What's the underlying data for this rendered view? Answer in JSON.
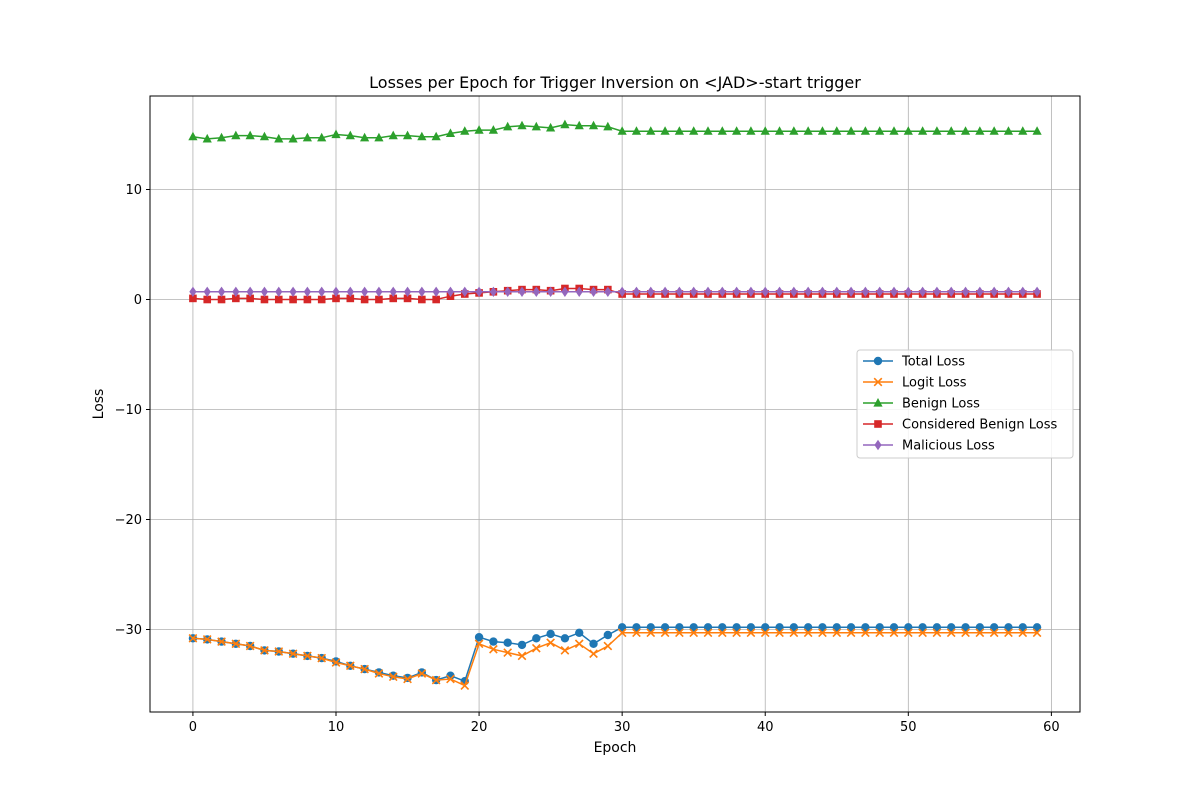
{
  "chart_data": {
    "type": "line",
    "title": "Losses per Epoch for Trigger Inversion on <JAD>-start trigger",
    "xlabel": "Epoch",
    "ylabel": "Loss",
    "xlim": [
      -3,
      62
    ],
    "ylim": [
      -37.5,
      18.5
    ],
    "xticks": [
      0,
      10,
      20,
      30,
      40,
      50,
      60
    ],
    "yticks": [
      -30,
      -20,
      -10,
      0,
      10
    ],
    "xtick_labels": [
      "0",
      "10",
      "20",
      "30",
      "40",
      "50",
      "60"
    ],
    "ytick_labels": [
      "−30",
      "−20",
      "−10",
      "0",
      "10"
    ],
    "grid": true,
    "legend_position": "center-right",
    "x": [
      0,
      1,
      2,
      3,
      4,
      5,
      6,
      7,
      8,
      9,
      10,
      11,
      12,
      13,
      14,
      15,
      16,
      17,
      18,
      19,
      20,
      21,
      22,
      23,
      24,
      25,
      26,
      27,
      28,
      29,
      30,
      31,
      32,
      33,
      34,
      35,
      36,
      37,
      38,
      39,
      40,
      41,
      42,
      43,
      44,
      45,
      46,
      47,
      48,
      49,
      50,
      51,
      52,
      53,
      54,
      55,
      56,
      57,
      58,
      59
    ],
    "series": [
      {
        "name": "Total Loss",
        "color": "#1f77b4",
        "marker": "circle",
        "values": [
          -30.8,
          -30.9,
          -31.1,
          -31.3,
          -31.5,
          -31.9,
          -32.0,
          -32.2,
          -32.4,
          -32.6,
          -32.9,
          -33.3,
          -33.6,
          -33.9,
          -34.2,
          -34.4,
          -33.9,
          -34.6,
          -34.2,
          -34.7,
          -30.7,
          -31.1,
          -31.2,
          -31.4,
          -30.8,
          -30.4,
          -30.8,
          -30.3,
          -31.3,
          -30.5,
          -29.8,
          -29.8,
          -29.8,
          -29.8,
          -29.8,
          -29.8,
          -29.8,
          -29.8,
          -29.8,
          -29.8,
          -29.8,
          -29.8,
          -29.8,
          -29.8,
          -29.8,
          -29.8,
          -29.8,
          -29.8,
          -29.8,
          -29.8,
          -29.8,
          -29.8,
          -29.8,
          -29.8,
          -29.8,
          -29.8,
          -29.8,
          -29.8,
          -29.8,
          -29.8
        ]
      },
      {
        "name": "Logit Loss",
        "color": "#ff7f0e",
        "marker": "x",
        "values": [
          -30.8,
          -30.9,
          -31.1,
          -31.3,
          -31.5,
          -31.9,
          -32.0,
          -32.2,
          -32.4,
          -32.6,
          -33.0,
          -33.3,
          -33.6,
          -34.0,
          -34.3,
          -34.5,
          -34.0,
          -34.6,
          -34.5,
          -35.1,
          -31.3,
          -31.8,
          -32.1,
          -32.4,
          -31.7,
          -31.2,
          -31.9,
          -31.3,
          -32.2,
          -31.5,
          -30.3,
          -30.3,
          -30.3,
          -30.3,
          -30.3,
          -30.3,
          -30.3,
          -30.3,
          -30.3,
          -30.3,
          -30.3,
          -30.3,
          -30.3,
          -30.3,
          -30.3,
          -30.3,
          -30.3,
          -30.3,
          -30.3,
          -30.3,
          -30.3,
          -30.3,
          -30.3,
          -30.3,
          -30.3,
          -30.3,
          -30.3,
          -30.3,
          -30.3,
          -30.3
        ]
      },
      {
        "name": "Benign Loss",
        "color": "#2ca02c",
        "marker": "triangle",
        "values": [
          14.8,
          14.6,
          14.7,
          14.9,
          14.9,
          14.8,
          14.6,
          14.6,
          14.7,
          14.7,
          15.0,
          14.9,
          14.7,
          14.7,
          14.9,
          14.9,
          14.8,
          14.8,
          15.1,
          15.3,
          15.4,
          15.4,
          15.7,
          15.8,
          15.7,
          15.6,
          15.9,
          15.8,
          15.8,
          15.7,
          15.3,
          15.3,
          15.3,
          15.3,
          15.3,
          15.3,
          15.3,
          15.3,
          15.3,
          15.3,
          15.3,
          15.3,
          15.3,
          15.3,
          15.3,
          15.3,
          15.3,
          15.3,
          15.3,
          15.3,
          15.3,
          15.3,
          15.3,
          15.3,
          15.3,
          15.3,
          15.3,
          15.3,
          15.3,
          15.3
        ]
      },
      {
        "name": "Considered Benign Loss",
        "color": "#d62728",
        "marker": "square",
        "values": [
          0.1,
          0.0,
          0.0,
          0.1,
          0.1,
          0.0,
          0.0,
          0.0,
          0.0,
          0.0,
          0.1,
          0.1,
          0.0,
          0.0,
          0.1,
          0.1,
          0.0,
          0.0,
          0.3,
          0.5,
          0.6,
          0.7,
          0.8,
          0.9,
          0.9,
          0.8,
          1.0,
          1.0,
          0.9,
          0.9,
          0.5,
          0.5,
          0.5,
          0.5,
          0.5,
          0.5,
          0.5,
          0.5,
          0.5,
          0.5,
          0.5,
          0.5,
          0.5,
          0.5,
          0.5,
          0.5,
          0.5,
          0.5,
          0.5,
          0.5,
          0.5,
          0.5,
          0.5,
          0.5,
          0.5,
          0.5,
          0.5,
          0.5,
          0.5,
          0.5
        ]
      },
      {
        "name": "Malicious Loss",
        "color": "#9467bd",
        "marker": "diamond",
        "values": [
          0.7,
          0.7,
          0.7,
          0.7,
          0.7,
          0.7,
          0.7,
          0.7,
          0.7,
          0.7,
          0.7,
          0.7,
          0.7,
          0.7,
          0.7,
          0.7,
          0.7,
          0.7,
          0.7,
          0.7,
          0.7,
          0.7,
          0.7,
          0.7,
          0.7,
          0.7,
          0.7,
          0.7,
          0.7,
          0.7,
          0.7,
          0.7,
          0.7,
          0.7,
          0.7,
          0.7,
          0.7,
          0.7,
          0.7,
          0.7,
          0.7,
          0.7,
          0.7,
          0.7,
          0.7,
          0.7,
          0.7,
          0.7,
          0.7,
          0.7,
          0.7,
          0.7,
          0.7,
          0.7,
          0.7,
          0.7,
          0.7,
          0.7,
          0.7,
          0.7
        ]
      }
    ]
  }
}
